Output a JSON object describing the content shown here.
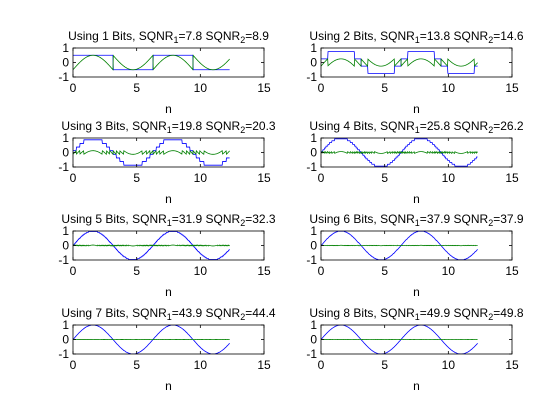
{
  "colors": {
    "quantized": "#0000ff",
    "error": "#008000",
    "axes": "#000000",
    "background": "#ffffff"
  },
  "chart_data": [
    {
      "type": "line",
      "title": "Using 1 Bits, SQNR",
      "title_parts": {
        "bits": 1,
        "sqnr1": "7.8",
        "sqnr2": "8.9"
      },
      "xlabel": "n",
      "ylabel": "",
      "xlim": [
        0,
        15
      ],
      "ylim": [
        -1,
        1
      ],
      "xticks": [
        "0",
        "5",
        "10",
        "15"
      ],
      "yticks": [
        "1",
        "0",
        "-1"
      ],
      "grid": false,
      "x_range": [
        0,
        12.3
      ],
      "series": [
        {
          "color": "#0000ff",
          "kind": "quantized"
        },
        {
          "color": "#008000",
          "kind": "error"
        }
      ]
    },
    {
      "type": "line",
      "title": "Using 2 Bits, SQNR",
      "title_parts": {
        "bits": 2,
        "sqnr1": "13.8",
        "sqnr2": "14.6"
      },
      "xlabel": "n",
      "ylabel": "",
      "xlim": [
        0,
        15
      ],
      "ylim": [
        -1,
        1
      ],
      "xticks": [
        "0",
        "5",
        "10",
        "15"
      ],
      "yticks": [
        "1",
        "0",
        "-1"
      ],
      "grid": false,
      "x_range": [
        0,
        12.3
      ],
      "series": [
        {
          "color": "#0000ff",
          "kind": "quantized"
        },
        {
          "color": "#008000",
          "kind": "error"
        }
      ]
    },
    {
      "type": "line",
      "title": "Using 3 Bits, SQNR",
      "title_parts": {
        "bits": 3,
        "sqnr1": "19.8",
        "sqnr2": "20.3"
      },
      "xlabel": "n",
      "ylabel": "",
      "xlim": [
        0,
        15
      ],
      "ylim": [
        -1,
        1
      ],
      "xticks": [
        "0",
        "5",
        "10",
        "15"
      ],
      "yticks": [
        "1",
        "0",
        "-1"
      ],
      "grid": false,
      "x_range": [
        0,
        12.3
      ],
      "series": [
        {
          "color": "#0000ff",
          "kind": "quantized"
        },
        {
          "color": "#008000",
          "kind": "error"
        }
      ]
    },
    {
      "type": "line",
      "title": "Using 4 Bits, SQNR",
      "title_parts": {
        "bits": 4,
        "sqnr1": "25.8",
        "sqnr2": "26.2"
      },
      "xlabel": "n",
      "ylabel": "",
      "xlim": [
        0,
        15
      ],
      "ylim": [
        -1,
        1
      ],
      "xticks": [
        "0",
        "5",
        "10",
        "15"
      ],
      "yticks": [
        "1",
        "0",
        "-1"
      ],
      "grid": false,
      "x_range": [
        0,
        12.3
      ],
      "series": [
        {
          "color": "#0000ff",
          "kind": "quantized"
        },
        {
          "color": "#008000",
          "kind": "error"
        }
      ]
    },
    {
      "type": "line",
      "title": "Using 5 Bits, SQNR",
      "title_parts": {
        "bits": 5,
        "sqnr1": "31.9",
        "sqnr2": "32.3"
      },
      "xlabel": "n",
      "ylabel": "",
      "xlim": [
        0,
        15
      ],
      "ylim": [
        -1,
        1
      ],
      "xticks": [
        "0",
        "5",
        "10",
        "15"
      ],
      "yticks": [
        "1",
        "0",
        "-1"
      ],
      "grid": false,
      "x_range": [
        0,
        12.3
      ],
      "series": [
        {
          "color": "#0000ff",
          "kind": "quantized"
        },
        {
          "color": "#008000",
          "kind": "error"
        }
      ]
    },
    {
      "type": "line",
      "title": "Using 6 Bits, SQNR",
      "title_parts": {
        "bits": 6,
        "sqnr1": "37.9",
        "sqnr2": "37.9"
      },
      "xlabel": "n",
      "ylabel": "",
      "xlim": [
        0,
        15
      ],
      "ylim": [
        -1,
        1
      ],
      "xticks": [
        "0",
        "5",
        "10",
        "15"
      ],
      "yticks": [
        "1",
        "0",
        "-1"
      ],
      "grid": false,
      "x_range": [
        0,
        12.3
      ],
      "series": [
        {
          "color": "#0000ff",
          "kind": "quantized"
        },
        {
          "color": "#008000",
          "kind": "error"
        }
      ]
    },
    {
      "type": "line",
      "title": "Using 7 Bits, SQNR",
      "title_parts": {
        "bits": 7,
        "sqnr1": "43.9",
        "sqnr2": "44.4"
      },
      "xlabel": "n",
      "ylabel": "",
      "xlim": [
        0,
        15
      ],
      "ylim": [
        -1,
        1
      ],
      "xticks": [
        "0",
        "5",
        "10",
        "15"
      ],
      "yticks": [
        "1",
        "0",
        "-1"
      ],
      "grid": false,
      "x_range": [
        0,
        12.3
      ],
      "series": [
        {
          "color": "#0000ff",
          "kind": "quantized"
        },
        {
          "color": "#008000",
          "kind": "error"
        }
      ]
    },
    {
      "type": "line",
      "title": "Using 8 Bits, SQNR",
      "title_parts": {
        "bits": 8,
        "sqnr1": "49.9",
        "sqnr2": "49.8"
      },
      "xlabel": "n",
      "ylabel": "",
      "xlim": [
        0,
        15
      ],
      "ylim": [
        -1,
        1
      ],
      "xticks": [
        "0",
        "5",
        "10",
        "15"
      ],
      "yticks": [
        "1",
        "0",
        "-1"
      ],
      "grid": false,
      "x_range": [
        0,
        12.3
      ],
      "series": [
        {
          "color": "#0000ff",
          "kind": "quantized"
        },
        {
          "color": "#008000",
          "kind": "error"
        }
      ]
    }
  ]
}
